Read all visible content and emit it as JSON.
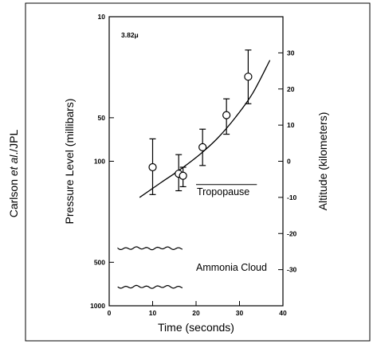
{
  "credit": "Carlson et al./JPL",
  "credit_parts": [
    "Carlson ",
    "et al",
    "./JPL"
  ],
  "chart_data": {
    "type": "scatter",
    "wavelength_label": "3.82μ",
    "xlabel": "Time (seconds)",
    "ylabel": "Pressure Level (millibars)",
    "y2label": "Altitude (kilometers)",
    "xlim": [
      0,
      40
    ],
    "ylim": [
      1000,
      10
    ],
    "yscale": "log",
    "y2lim": [
      -40,
      40
    ],
    "x_ticks": [
      0,
      10,
      20,
      30,
      40
    ],
    "x_tick_labels": [
      "0",
      "10",
      "20",
      "30",
      "40"
    ],
    "y_ticks": [
      10,
      50,
      100,
      500,
      1000
    ],
    "y_tick_labels": [
      "10",
      "50",
      "100",
      "500",
      "1000"
    ],
    "y2_ticks": [
      30,
      20,
      10,
      0,
      -10,
      -20,
      -30
    ],
    "y2_tick_labels": [
      "30",
      "20",
      "10",
      "0",
      "-10",
      "-20",
      "-30"
    ],
    "points": [
      {
        "x": 10,
        "y": 110,
        "err_low": 70,
        "err_high": 170
      },
      {
        "x": 16,
        "y": 122,
        "err_low": 90,
        "err_high": 160
      },
      {
        "x": 17,
        "y": 126,
        "err_low": 110,
        "err_high": 150
      },
      {
        "x": 21.5,
        "y": 80,
        "err_low": 60,
        "err_high": 107
      },
      {
        "x": 27,
        "y": 48,
        "err_low": 37,
        "err_high": 65
      },
      {
        "x": 32,
        "y": 26,
        "err_low": 17,
        "err_high": 40
      }
    ],
    "fit_curve": {
      "x": [
        7,
        12,
        16,
        21,
        25,
        29,
        33,
        37
      ],
      "y": [
        178,
        140,
        116,
        89,
        69,
        50,
        34,
        20
      ]
    },
    "annotations": {
      "tropopause": "Tropopause",
      "ammonia_cloud": "Ammonia Cloud"
    },
    "tropopause_line": {
      "x": [
        20,
        34
      ],
      "y": 145
    },
    "cloud_bands": [
      {
        "x": [
          2,
          17
        ],
        "y": 400
      },
      {
        "x": [
          2,
          17
        ],
        "y": 740
      }
    ]
  }
}
